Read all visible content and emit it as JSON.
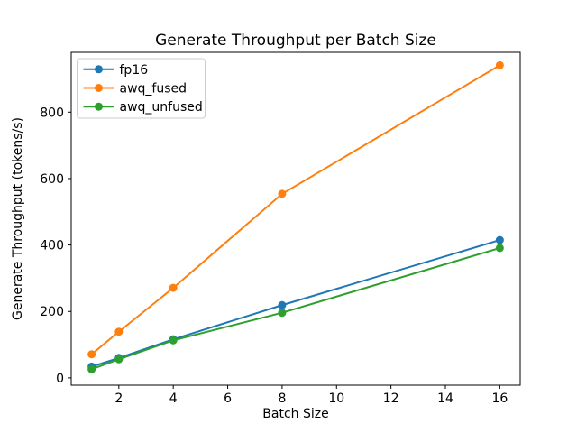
{
  "chart_data": {
    "type": "line",
    "title": "Generate Throughput per Batch Size",
    "xlabel": "Batch Size",
    "ylabel": "Generate Throughput (tokens/s)",
    "x": [
      1,
      2,
      4,
      8,
      16
    ],
    "series": [
      {
        "name": "fp16",
        "color": "#1f77b4",
        "values": [
          34,
          60,
          116,
          219,
          415
        ]
      },
      {
        "name": "awq_fused",
        "color": "#ff7f0e",
        "values": [
          71,
          139,
          271,
          554,
          941
        ]
      },
      {
        "name": "awq_unfused",
        "color": "#2ca02c",
        "values": [
          26,
          56,
          113,
          196,
          391
        ]
      }
    ],
    "xticks": [
      2,
      4,
      6,
      8,
      10,
      12,
      14,
      16
    ],
    "yticks": [
      0,
      200,
      400,
      600,
      800
    ],
    "xlim": [
      0.25,
      16.75
    ],
    "ylim": [
      -22,
      980
    ],
    "legend": {
      "position": "upper left",
      "entries": [
        "fp16",
        "awq_fused",
        "awq_unfused"
      ]
    },
    "grid": false,
    "marker": "o",
    "line_width": 2,
    "marker_radius": 4.5,
    "frame_color": "#000000",
    "legend_border_color": "#cccccc",
    "background": "#ffffff"
  }
}
